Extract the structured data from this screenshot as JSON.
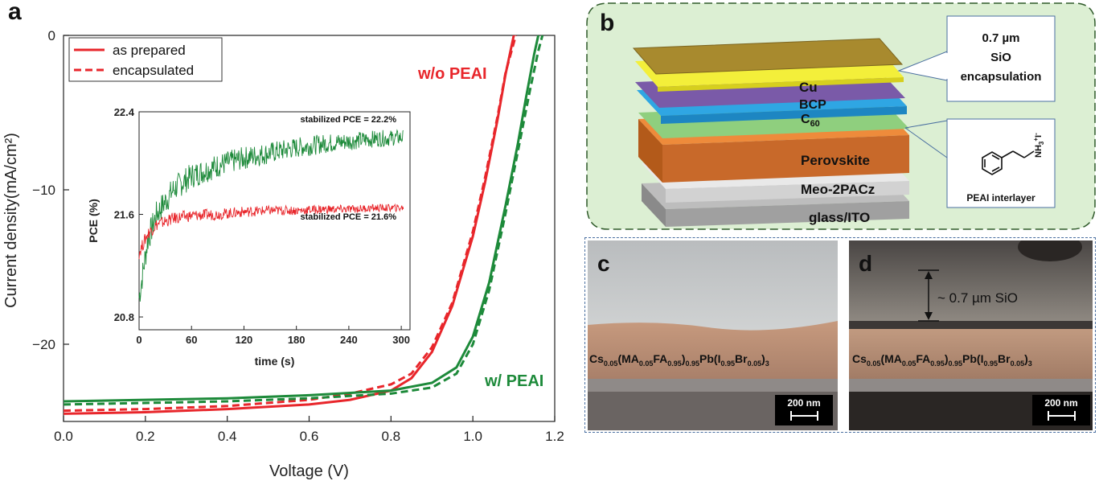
{
  "panel_a": {
    "letter": "a",
    "legend": {
      "solid": "as prepared",
      "dashed": "encapsulated"
    },
    "label_wo": "w/o PEAI",
    "label_w": "w/ PEAI",
    "colors": {
      "red": "#e8262b",
      "green": "#1d8a3a"
    }
  },
  "panel_b": {
    "letter": "b",
    "layers": [
      "Cu",
      "BCP",
      "C60",
      "Perovskite",
      "Meo-2PACz",
      "glass/ITO"
    ],
    "callout_top": [
      "0.7 µm",
      "SiO",
      "encapsulation"
    ],
    "callout_bottom": {
      "caption": "PEAI interlayer",
      "group": "NH3+I-"
    },
    "colors": {
      "background": "#dcefd3",
      "border": "#2f5a2a"
    }
  },
  "panel_c": {
    "letter": "c",
    "composition": "Cs0.05(MA0.05FA0.95)0.95Pb(I0.95Br0.05)3",
    "scale_bar": "200 nm"
  },
  "panel_d": {
    "letter": "d",
    "thickness_label": "~ 0.7 µm SiO",
    "composition": "Cs0.05(MA0.05FA0.95)0.95Pb(I0.95Br0.05)3",
    "scale_bar": "200 nm"
  },
  "chart_data": [
    {
      "type": "line",
      "xlabel": "Voltage (V)",
      "ylabel": "Current density(mA/cm²)",
      "xlim": [
        0.0,
        1.2
      ],
      "ylim": [
        -25,
        0
      ],
      "xticks": [
        "0.0",
        "0.2",
        "0.4",
        "0.6",
        "0.8",
        "1.0",
        "1.2"
      ],
      "yticks": [
        "0",
        "−10",
        "−20"
      ],
      "legend_position": "top-left",
      "series": [
        {
          "name": "as prepared",
          "group": "w/o PEAI",
          "color": "#e8262b",
          "style": "solid",
          "x": [
            0.0,
            0.2,
            0.4,
            0.6,
            0.7,
            0.8,
            0.85,
            0.9,
            0.95,
            1.0,
            1.03,
            1.06,
            1.08,
            1.1
          ],
          "y": [
            -24.5,
            -24.4,
            -24.2,
            -23.9,
            -23.6,
            -23.0,
            -22.2,
            -20.5,
            -17.5,
            -13.0,
            -9.5,
            -5.5,
            -2.5,
            0.0
          ]
        },
        {
          "name": "encapsulated",
          "group": "w/o PEAI",
          "color": "#e8262b",
          "style": "dashed",
          "x": [
            0.0,
            0.2,
            0.4,
            0.6,
            0.7,
            0.8,
            0.85,
            0.9,
            0.95,
            1.0,
            1.03,
            1.06,
            1.08,
            1.105
          ],
          "y": [
            -24.3,
            -24.2,
            -24.0,
            -23.6,
            -23.2,
            -22.6,
            -21.9,
            -20.2,
            -17.3,
            -12.7,
            -9.2,
            -5.3,
            -2.4,
            0.0
          ]
        },
        {
          "name": "as prepared",
          "group": "w/ PEAI",
          "color": "#1d8a3a",
          "style": "solid",
          "x": [
            0.0,
            0.2,
            0.4,
            0.6,
            0.8,
            0.9,
            0.96,
            1.0,
            1.04,
            1.08,
            1.11,
            1.13,
            1.15,
            1.16
          ],
          "y": [
            -23.7,
            -23.6,
            -23.5,
            -23.3,
            -23.0,
            -22.5,
            -21.5,
            -19.5,
            -16.0,
            -11.0,
            -7.0,
            -4.0,
            -1.2,
            0.0
          ]
        },
        {
          "name": "encapsulated",
          "group": "w/ PEAI",
          "color": "#1d8a3a",
          "style": "dashed",
          "x": [
            0.0,
            0.2,
            0.4,
            0.6,
            0.8,
            0.9,
            0.96,
            1.0,
            1.04,
            1.08,
            1.11,
            1.14,
            1.16,
            1.17
          ],
          "y": [
            -23.9,
            -23.8,
            -23.7,
            -23.5,
            -23.2,
            -22.8,
            -21.9,
            -20.0,
            -16.5,
            -11.5,
            -7.5,
            -3.5,
            -1.0,
            0.0
          ]
        }
      ]
    },
    {
      "type": "line",
      "xlabel": "time (s)",
      "ylabel": "PCE (%)",
      "xlim": [
        0,
        310
      ],
      "ylim": [
        20.7,
        22.4
      ],
      "xticks": [
        "0",
        "60",
        "120",
        "180",
        "240",
        "300"
      ],
      "yticks": [
        "20.8",
        "21.6",
        "22.4"
      ],
      "annotations": [
        "stabilized PCE = 22.2%",
        "stabilized PCE = 21.6%"
      ],
      "series": [
        {
          "name": "",
          "color": "#1d8a3a",
          "t": [
            0,
            10,
            20,
            40,
            60,
            90,
            120,
            150,
            180,
            210,
            240,
            270,
            300
          ],
          "y": [
            20.95,
            21.4,
            21.6,
            21.8,
            21.9,
            21.98,
            22.04,
            22.08,
            22.12,
            22.15,
            22.17,
            22.19,
            22.2
          ]
        },
        {
          "name": "",
          "color": "#e8262b",
          "t": [
            0,
            10,
            20,
            40,
            60,
            90,
            120,
            150,
            180,
            210,
            240,
            270,
            300
          ],
          "y": [
            21.3,
            21.45,
            21.52,
            21.57,
            21.59,
            21.6,
            21.62,
            21.63,
            21.63,
            21.64,
            21.64,
            21.65,
            21.65
          ]
        }
      ]
    }
  ]
}
